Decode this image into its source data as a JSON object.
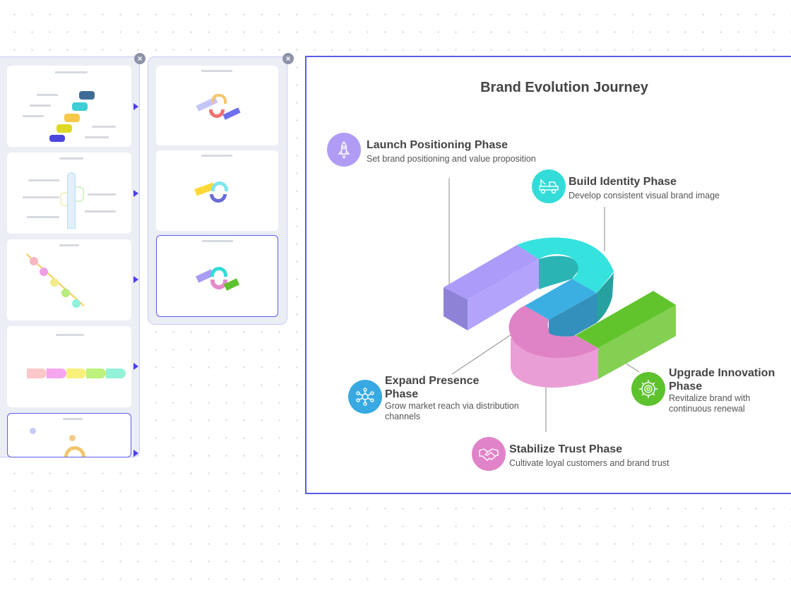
{
  "panels": {
    "close_label": "×"
  },
  "canvas": {
    "title": "Brand Evolution Journey",
    "phases": [
      {
        "title": "Launch Positioning Phase",
        "desc": "Set brand positioning and value proposition",
        "color": "#b09cf5",
        "icon": "rocket-icon"
      },
      {
        "title": "Build Identity Phase",
        "desc": "Develop consistent visual brand image",
        "color": "#33dcd8",
        "icon": "tow-truck-icon"
      },
      {
        "title": "Expand Presence Phase",
        "desc": "Grow market reach via distribution channels",
        "color": "#38a9e2",
        "icon": "network-icon"
      },
      {
        "title": "Upgrade Innovation Phase",
        "desc": "Revitalize brand with continuous renewal",
        "color": "#5ec22e",
        "icon": "gear-icon"
      },
      {
        "title": "Stabilize Trust Phase",
        "desc": "Cultivate loyal customers and brand trust",
        "color": "#e083c8",
        "icon": "handshake-icon"
      }
    ]
  }
}
